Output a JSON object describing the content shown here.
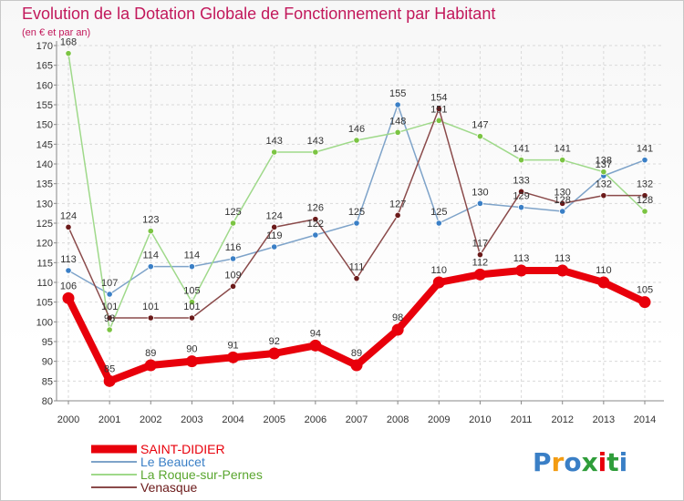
{
  "chart_data": {
    "type": "line",
    "title": "Evolution de la Dotation Globale de Fonctionnement par Habitant",
    "subtitle": "(en € et par an)",
    "xlabel": "",
    "ylabel": "",
    "categories": [
      "2000",
      "2001",
      "2002",
      "2003",
      "2004",
      "2005",
      "2006",
      "2007",
      "2008",
      "2009",
      "2010",
      "2011",
      "2012",
      "2013",
      "2014"
    ],
    "ylim": [
      80,
      170
    ],
    "ytick_step": 5,
    "grid": true,
    "series": [
      {
        "name": "SAINT-DIDIER",
        "color": "#e8000b",
        "marker": "#e8000b",
        "label_color": "#e8000b",
        "values": [
          106,
          85,
          89,
          90,
          91,
          92,
          94,
          89,
          98,
          110,
          112,
          113,
          113,
          110,
          105
        ]
      },
      {
        "name": "Le Beaucet",
        "color": "#7ea3c9",
        "marker": "#3a7fc6",
        "label_color": "#3a7fc6",
        "values": [
          113,
          107,
          114,
          114,
          116,
          119,
          122,
          125,
          155,
          125,
          130,
          129,
          128,
          137,
          141
        ]
      },
      {
        "name": "La Roque-sur-Pernes",
        "color": "#9fd98a",
        "marker": "#7bc442",
        "label_color": "#5aa62f",
        "values": [
          168,
          98,
          123,
          105,
          125,
          143,
          143,
          146,
          148,
          151,
          147,
          141,
          141,
          138,
          128
        ]
      },
      {
        "name": "Venasque",
        "color": "#8a4a4a",
        "marker": "#6b1a1a",
        "label_color": "#6b1a1a",
        "values": [
          124,
          101,
          101,
          101,
          109,
          124,
          126,
          111,
          127,
          154,
          117,
          133,
          130,
          132,
          132
        ]
      }
    ],
    "legend_position": "bottom-left"
  },
  "logo": {
    "text": "Proxiti"
  }
}
